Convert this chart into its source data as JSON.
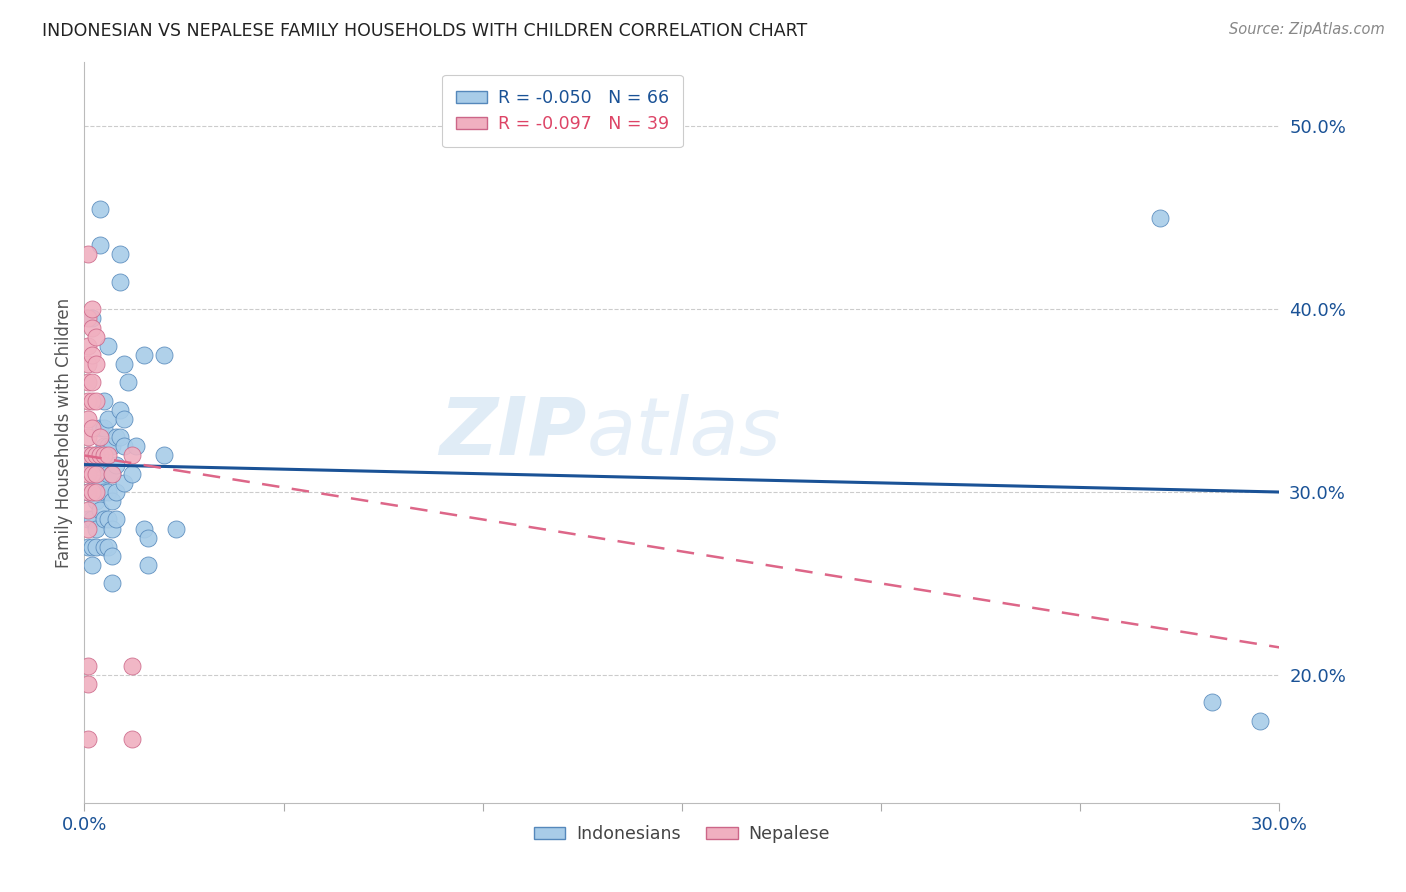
{
  "title": "INDONESIAN VS NEPALESE FAMILY HOUSEHOLDS WITH CHILDREN CORRELATION CHART",
  "source": "Source: ZipAtlas.com",
  "ylabel": "Family Households with Children",
  "x_min": 0.0,
  "x_max": 0.3,
  "y_min": 0.13,
  "y_max": 0.535,
  "x_ticks": [
    0.0,
    0.05,
    0.1,
    0.15,
    0.2,
    0.25,
    0.3
  ],
  "y_ticks": [
    0.2,
    0.3,
    0.4,
    0.5
  ],
  "blue_color": "#a8cce8",
  "blue_edge": "#5588bb",
  "pink_color": "#f0b0c0",
  "pink_edge": "#cc6688",
  "trend_blue": "#1a5296",
  "trend_pink": "#dd6688",
  "watermark": "ZIPatlas",
  "indonesian_points": [
    [
      0.001,
      0.32
    ],
    [
      0.001,
      0.3
    ],
    [
      0.001,
      0.285
    ],
    [
      0.001,
      0.27
    ],
    [
      0.002,
      0.395
    ],
    [
      0.002,
      0.315
    ],
    [
      0.002,
      0.3
    ],
    [
      0.002,
      0.285
    ],
    [
      0.002,
      0.27
    ],
    [
      0.002,
      0.26
    ],
    [
      0.003,
      0.32
    ],
    [
      0.003,
      0.305
    ],
    [
      0.003,
      0.295
    ],
    [
      0.003,
      0.28
    ],
    [
      0.003,
      0.27
    ],
    [
      0.004,
      0.455
    ],
    [
      0.004,
      0.435
    ],
    [
      0.004,
      0.335
    ],
    [
      0.004,
      0.32
    ],
    [
      0.004,
      0.305
    ],
    [
      0.004,
      0.29
    ],
    [
      0.005,
      0.35
    ],
    [
      0.005,
      0.335
    ],
    [
      0.005,
      0.325
    ],
    [
      0.005,
      0.315
    ],
    [
      0.005,
      0.3
    ],
    [
      0.005,
      0.285
    ],
    [
      0.005,
      0.27
    ],
    [
      0.006,
      0.38
    ],
    [
      0.006,
      0.34
    ],
    [
      0.006,
      0.325
    ],
    [
      0.006,
      0.31
    ],
    [
      0.006,
      0.3
    ],
    [
      0.006,
      0.285
    ],
    [
      0.006,
      0.27
    ],
    [
      0.007,
      0.325
    ],
    [
      0.007,
      0.31
    ],
    [
      0.007,
      0.295
    ],
    [
      0.007,
      0.28
    ],
    [
      0.007,
      0.265
    ],
    [
      0.007,
      0.25
    ],
    [
      0.008,
      0.33
    ],
    [
      0.008,
      0.315
    ],
    [
      0.008,
      0.3
    ],
    [
      0.008,
      0.285
    ],
    [
      0.009,
      0.43
    ],
    [
      0.009,
      0.415
    ],
    [
      0.009,
      0.345
    ],
    [
      0.009,
      0.33
    ],
    [
      0.01,
      0.37
    ],
    [
      0.01,
      0.34
    ],
    [
      0.01,
      0.325
    ],
    [
      0.01,
      0.305
    ],
    [
      0.011,
      0.36
    ],
    [
      0.012,
      0.31
    ],
    [
      0.013,
      0.325
    ],
    [
      0.015,
      0.375
    ],
    [
      0.015,
      0.28
    ],
    [
      0.016,
      0.275
    ],
    [
      0.016,
      0.26
    ],
    [
      0.02,
      0.375
    ],
    [
      0.02,
      0.32
    ],
    [
      0.023,
      0.28
    ],
    [
      0.27,
      0.45
    ],
    [
      0.283,
      0.185
    ],
    [
      0.295,
      0.175
    ]
  ],
  "nepalese_points": [
    [
      0.001,
      0.43
    ],
    [
      0.001,
      0.395
    ],
    [
      0.001,
      0.38
    ],
    [
      0.001,
      0.37
    ],
    [
      0.001,
      0.36
    ],
    [
      0.001,
      0.35
    ],
    [
      0.001,
      0.34
    ],
    [
      0.001,
      0.33
    ],
    [
      0.001,
      0.32
    ],
    [
      0.001,
      0.31
    ],
    [
      0.001,
      0.3
    ],
    [
      0.001,
      0.29
    ],
    [
      0.001,
      0.28
    ],
    [
      0.001,
      0.205
    ],
    [
      0.001,
      0.195
    ],
    [
      0.002,
      0.4
    ],
    [
      0.002,
      0.39
    ],
    [
      0.002,
      0.375
    ],
    [
      0.002,
      0.36
    ],
    [
      0.002,
      0.35
    ],
    [
      0.002,
      0.335
    ],
    [
      0.002,
      0.32
    ],
    [
      0.002,
      0.31
    ],
    [
      0.002,
      0.3
    ],
    [
      0.003,
      0.385
    ],
    [
      0.003,
      0.37
    ],
    [
      0.003,
      0.35
    ],
    [
      0.003,
      0.32
    ],
    [
      0.003,
      0.31
    ],
    [
      0.003,
      0.3
    ],
    [
      0.004,
      0.33
    ],
    [
      0.004,
      0.32
    ],
    [
      0.005,
      0.32
    ],
    [
      0.006,
      0.32
    ],
    [
      0.007,
      0.31
    ],
    [
      0.012,
      0.32
    ],
    [
      0.012,
      0.205
    ],
    [
      0.012,
      0.165
    ],
    [
      0.001,
      0.165
    ]
  ],
  "trend_blue_y0": 0.315,
  "trend_blue_y1": 0.3,
  "trend_pink_y0": 0.32,
  "trend_pink_y1": 0.215
}
